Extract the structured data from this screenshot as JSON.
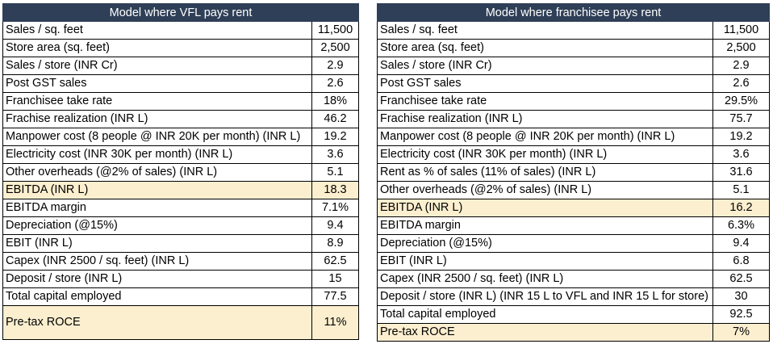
{
  "left_table": {
    "title": "Model where VFL pays rent",
    "rows": [
      {
        "label": "Sales / sq. feet",
        "value": "11,500"
      },
      {
        "label": "Store area (sq. feet)",
        "value": "2,500"
      },
      {
        "label": "Sales / store (INR Cr)",
        "value": "2.9"
      },
      {
        "label": "Post GST sales",
        "value": "2.6"
      },
      {
        "label": "Franchisee take rate",
        "value": "18%"
      },
      {
        "label": "Frachise realization (INR L)",
        "value": "46.2"
      },
      {
        "label": "Manpower cost (8 people @ INR 20K per month) (INR L)",
        "value": "19.2"
      },
      {
        "label": "Electricity cost (INR 30K per month) (INR L)",
        "value": "3.6"
      },
      {
        "label": "Other overheads (@2% of sales) (INR L)",
        "value": "5.1"
      },
      {
        "label": "EBITDA (INR L)",
        "value": "18.3",
        "highlight": true
      },
      {
        "label": "EBITDA margin",
        "value": "7.1%"
      },
      {
        "label": "Depreciation (@15%)",
        "value": "9.4"
      },
      {
        "label": "EBIT (INR L)",
        "value": "8.9"
      },
      {
        "label": "Capex (INR 2500 / sq. feet) (INR L)",
        "value": "62.5"
      },
      {
        "label": "Deposit / store (INR L)",
        "value": "15"
      },
      {
        "label": "Total capital employed",
        "value": "77.5"
      },
      {
        "label": "Pre-tax ROCE",
        "value": "11%",
        "highlight": true
      }
    ]
  },
  "right_table": {
    "title": "Model where franchisee pays rent",
    "rows": [
      {
        "label": "Sales / sq. feet",
        "value": "11,500"
      },
      {
        "label": "Store area (sq. feet)",
        "value": "2,500"
      },
      {
        "label": "Sales / store (INR Cr)",
        "value": "2.9"
      },
      {
        "label": "Post GST sales",
        "value": "2.6"
      },
      {
        "label": "Franchisee take rate",
        "value": "29.5%"
      },
      {
        "label": "Frachise realization (INR L)",
        "value": "75.7"
      },
      {
        "label": "Manpower cost (8 people @ INR 20K per month) (INR L)",
        "value": "19.2"
      },
      {
        "label": "Electricity cost (INR 30K per month) (INR L)",
        "value": "3.6"
      },
      {
        "label": "Rent as % of sales (11% of sales) (INR L)",
        "value": "31.6"
      },
      {
        "label": "Other overheads (@2% of sales) (INR L)",
        "value": "5.1"
      },
      {
        "label": "EBITDA (INR L)",
        "value": "16.2",
        "highlight": true
      },
      {
        "label": "EBITDA margin",
        "value": "6.3%"
      },
      {
        "label": "Depreciation (@15%)",
        "value": "9.4"
      },
      {
        "label": "EBIT (INR L)",
        "value": "6.8"
      },
      {
        "label": "Capex (INR 2500 / sq. feet) (INR L)",
        "value": "62.5"
      },
      {
        "label": "Deposit / store (INR L) (INR 15 L to VFL and INR 15 L for store)",
        "value": "30"
      },
      {
        "label": "Total capital employed",
        "value": "92.5"
      },
      {
        "label": "Pre-tax ROCE",
        "value": "7%",
        "highlight": true
      }
    ]
  },
  "colors": {
    "header_bg": "#2f3f57",
    "header_text": "#ffffff",
    "highlight_bg": "#fcefcf"
  }
}
